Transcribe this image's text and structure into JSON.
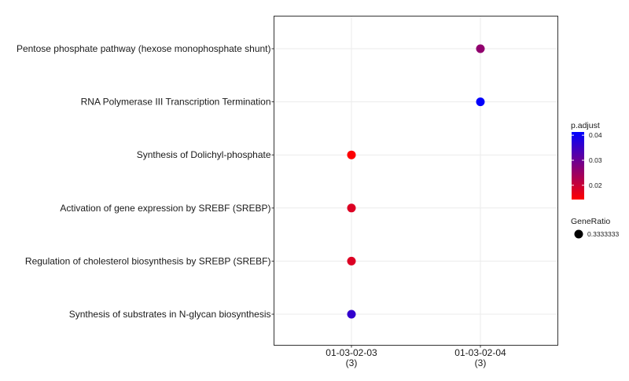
{
  "chart_data": {
    "type": "scatter",
    "title": "",
    "xlabel": "",
    "ylabel": "",
    "categories": [
      {
        "line1": "01-03-02-03",
        "line2": "(3)"
      },
      {
        "line1": "01-03-02-04",
        "line2": "(3)"
      }
    ],
    "terms": [
      "Pentose phosphate pathway (hexose monophosphate shunt)",
      "RNA Polymerase III Transcription Termination",
      "Synthesis of Dolichyl-phosphate",
      "Activation of gene expression by SREBF (SREBP)",
      "Regulation of cholesterol biosynthesis by SREBP (SREBF)",
      "Synthesis of substrates in N-glycan biosynthesis"
    ],
    "points": [
      {
        "x": "01-03-02-04",
        "y": "Pentose phosphate pathway (hexose monophosphate shunt)",
        "p_adjust": 0.026,
        "gene_ratio": 0.3333333
      },
      {
        "x": "01-03-02-04",
        "y": "RNA Polymerase III Transcription Termination",
        "p_adjust": 0.041,
        "gene_ratio": 0.3333333
      },
      {
        "x": "01-03-02-03",
        "y": "Synthesis of Dolichyl-phosphate",
        "p_adjust": 0.0145,
        "gene_ratio": 0.3333333
      },
      {
        "x": "01-03-02-03",
        "y": "Activation of gene expression by SREBF (SREBP)",
        "p_adjust": 0.018,
        "gene_ratio": 0.3333333
      },
      {
        "x": "01-03-02-03",
        "y": "Regulation of cholesterol biosynthesis by SREBP (SREBF)",
        "p_adjust": 0.018,
        "gene_ratio": 0.3333333
      },
      {
        "x": "01-03-02-03",
        "y": "Synthesis of substrates in N-glycan biosynthesis",
        "p_adjust": 0.036,
        "gene_ratio": 0.3333333
      }
    ],
    "color_scale": {
      "title": "p.adjust",
      "low_color": "#ff0000",
      "high_color": "#0000ff",
      "min": 0.0143,
      "max": 0.0413,
      "ticks": [
        0.02,
        0.03,
        0.04
      ],
      "tick_labels": [
        "0.02",
        "0.03",
        "0.04"
      ]
    },
    "size_legend": {
      "title": "GeneRatio",
      "entries": [
        {
          "value": 0.3333333,
          "label": "0.3333333"
        }
      ]
    },
    "grid": true,
    "legend_position": "right"
  }
}
